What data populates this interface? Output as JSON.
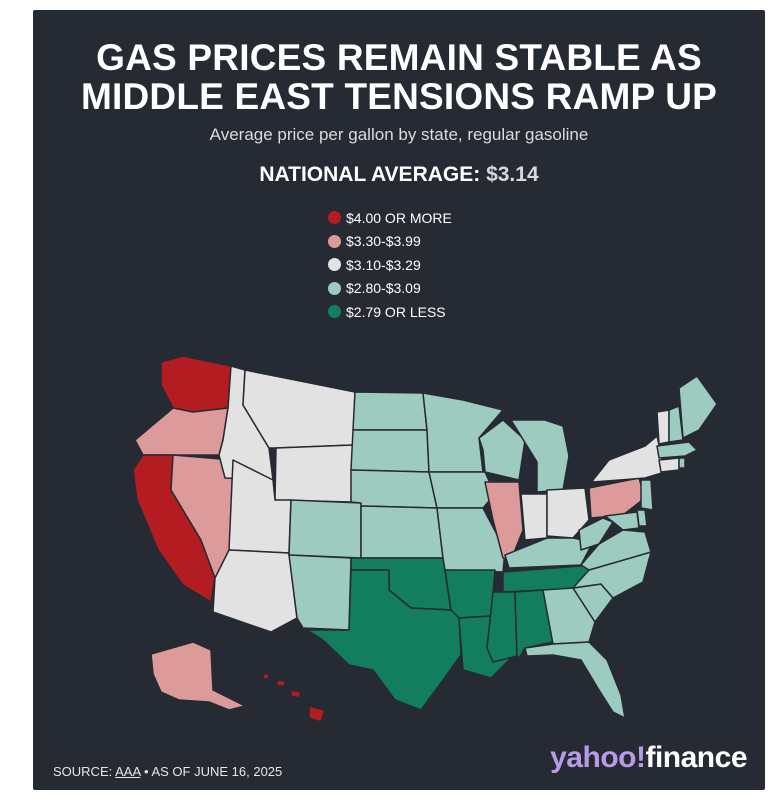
{
  "title_line1": "GAS PRICES REMAIN STABLE AS",
  "title_line2": "MIDDLE EAST TENSIONS RAMP UP",
  "subtitle": "Average price per gallon by state, regular gasoline",
  "national_average_label": "NATIONAL AVERAGE:",
  "national_average_value": "$3.14",
  "legend": [
    {
      "label": "$4.00 OR MORE",
      "color": "#b31d22"
    },
    {
      "label": "$3.30-$3.99",
      "color": "#dc9a9b"
    },
    {
      "label": "$3.10-$3.29",
      "color": "#e2e2e2"
    },
    {
      "label": "$2.80-$3.09",
      "color": "#9ecbbf"
    },
    {
      "label": "$2.79 OR LESS",
      "color": "#127e5e"
    }
  ],
  "source": {
    "prefix": "SOURCE: ",
    "link": "AAA",
    "suffix": " • AS OF JUNE 16, 2025"
  },
  "logo": {
    "yahoo": "yahoo!",
    "finance": "finance"
  },
  "state_tiers": {
    "$4.00 OR MORE": [
      "WA",
      "CA",
      "HI"
    ],
    "$3.30-$3.99": [
      "OR",
      "NV",
      "AK",
      "IL",
      "PA"
    ],
    "$3.10-$3.29": [
      "ID",
      "MT",
      "WY",
      "UT",
      "AZ",
      "IN",
      "OH",
      "NY",
      "VT",
      "CT"
    ],
    "$2.80-$3.09": [
      "CO",
      "NM",
      "ND",
      "SD",
      "NE",
      "KS",
      "MN",
      "IA",
      "MO",
      "WI",
      "MI",
      "KY",
      "WV",
      "VA",
      "NC",
      "SC",
      "GA",
      "FL",
      "ME",
      "NH",
      "MA",
      "RI",
      "NJ",
      "DE",
      "MD"
    ],
    "$2.79 OR LESS": [
      "TX",
      "OK",
      "AR",
      "LA",
      "MS",
      "AL",
      "TN"
    ]
  }
}
